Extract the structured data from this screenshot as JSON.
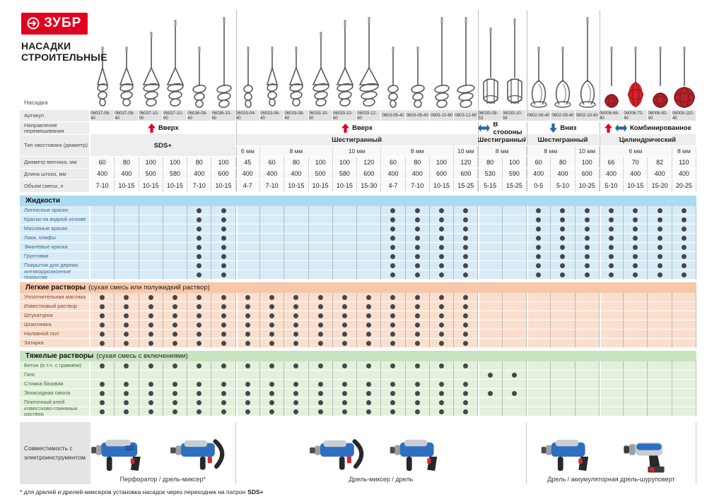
{
  "brand": {
    "logo_text": "ЗУБР",
    "title_line1": "НАСАДКИ",
    "title_line2": "СТРОИТЕЛЬНЫЕ"
  },
  "colors": {
    "logo_red": "#e2001f",
    "arrow_red": "#e2001f",
    "arrow_blue": "#2565ae",
    "liquids_band": "#aadcef",
    "liquids_row": "#d7ebf7",
    "light_band": "#f7c7a9",
    "light_row": "#fadfce",
    "heavy_band": "#c9e2c0",
    "heavy_row": "#e3f0dc",
    "dot": "#43474b",
    "paddle_red": "#b5242b"
  },
  "row_labels": {
    "nozzle": "Насадка",
    "article": "Артикул",
    "direction": "Направление перемешивания",
    "shank": "Тип хвостовика (диаметр)",
    "diameter": "Диаметр венчика, мм",
    "length": "Длина штока, мм",
    "volume": "Объем смеси, л"
  },
  "shaded_groups": [
    2,
    4
  ],
  "groups": [
    {
      "direction": "Вверх",
      "arrows": [
        "up"
      ],
      "shank": "SDS+",
      "merge_shank_rows": true,
      "cols": [
        {
          "article": "06037-06-40",
          "diameter": "60",
          "length": "400",
          "volume": "7-10",
          "paddle": "spiralA"
        },
        {
          "article": "06037-08-40",
          "diameter": "80",
          "length": "400",
          "volume": "10-15",
          "paddle": "spiralA"
        },
        {
          "article": "06037-10-50",
          "diameter": "100",
          "length": "500",
          "volume": "10-15",
          "paddle": "spiralA"
        },
        {
          "article": "06037-10-60",
          "diameter": "100",
          "length": "580",
          "volume": "10-15",
          "paddle": "spiralA"
        },
        {
          "article": "06036-08-40",
          "diameter": "80",
          "length": "400",
          "volume": "7-10",
          "paddle": "spiralB"
        },
        {
          "article": "06036-10-60",
          "diameter": "100",
          "length": "600",
          "volume": "10-15",
          "paddle": "spiralB"
        }
      ]
    },
    {
      "direction": "Вверх",
      "arrows": [
        "up"
      ],
      "shank": "Шестигранный",
      "mm": [
        {
          "label": "6 мм",
          "span": 1
        },
        {
          "label": "8 мм",
          "span": 3
        },
        {
          "label": "10 мм",
          "span": 2
        },
        {
          "label": "8 мм",
          "span": 3
        },
        {
          "label": "10 мм",
          "span": 1
        }
      ],
      "cols": [
        {
          "article": "06033-04-40",
          "diameter": "45",
          "length": "400",
          "volume": "4-7",
          "paddle": "spiralB"
        },
        {
          "article": "06033-06-40",
          "diameter": "60",
          "length": "400",
          "volume": "7-10",
          "paddle": "spiralA"
        },
        {
          "article": "06033-08-40",
          "diameter": "80",
          "length": "400",
          "volume": "10-15",
          "paddle": "spiralA"
        },
        {
          "article": "06033-10-50",
          "diameter": "100",
          "length": "500",
          "volume": "10-15",
          "paddle": "spiralA"
        },
        {
          "article": "06033-10-60",
          "diameter": "100",
          "length": "580",
          "volume": "10-15",
          "paddle": "spiralA"
        },
        {
          "article": "06033-12-60",
          "diameter": "120",
          "length": "600",
          "volume": "15-30",
          "paddle": "spiralA"
        },
        {
          "article": "0603-06-40",
          "diameter": "60",
          "length": "400",
          "volume": "4-7",
          "paddle": "spiralB"
        },
        {
          "article": "0603-08-40",
          "diameter": "80",
          "length": "400",
          "volume": "7-10",
          "paddle": "spiralB"
        },
        {
          "article": "0603-10-60",
          "diameter": "100",
          "length": "600",
          "volume": "10-15",
          "paddle": "spiralB"
        },
        {
          "article": "0603-12-60",
          "diameter": "120",
          "length": "600",
          "volume": "15-25",
          "paddle": "spiralB"
        }
      ]
    },
    {
      "direction": "В стороны",
      "arrows": [
        "lr"
      ],
      "shank": "Шестигранный",
      "mm": [
        {
          "label": "8 мм",
          "span": 2
        }
      ],
      "cols": [
        {
          "article": "06035-08-53",
          "diameter": "80",
          "length": "530",
          "volume": "5-15",
          "paddle": "cage"
        },
        {
          "article": "06035-10-59",
          "diameter": "100",
          "length": "590",
          "volume": "15-25",
          "paddle": "cage"
        }
      ]
    },
    {
      "direction": "Вниз",
      "arrows": [
        "down"
      ],
      "shank": "Шестигранный",
      "mm": [
        {
          "label": "8 мм",
          "span": 2
        },
        {
          "label": "10 мм",
          "span": 1
        }
      ],
      "cols": [
        {
          "article": "0602-06-40",
          "diameter": "60",
          "length": "400",
          "volume": "0-5",
          "paddle": "swirl"
        },
        {
          "article": "0602-08-40",
          "diameter": "80",
          "length": "400",
          "volume": "5-10",
          "paddle": "swirl"
        },
        {
          "article": "0602-10-60",
          "diameter": "100",
          "length": "600",
          "volume": "10-25",
          "paddle": "swirl"
        }
      ]
    },
    {
      "direction": "Комбинированное",
      "arrows": [
        "up",
        "lr"
      ],
      "shank": "Цилиндрический",
      "mm": [
        {
          "label": "6 мм",
          "span": 3
        },
        {
          "label": "8 мм",
          "span": 1
        }
      ],
      "cols": [
        {
          "article": "06006-66-40",
          "diameter": "66",
          "length": "400",
          "volume": "5-10",
          "paddle": "ball"
        },
        {
          "article": "06006-70-40",
          "diameter": "70",
          "length": "400",
          "volume": "10-15",
          "paddle": "ballV"
        },
        {
          "article": "06006-82-40",
          "diameter": "82",
          "length": "400",
          "volume": "15-20",
          "paddle": "ball"
        },
        {
          "article": "06008-110-40",
          "diameter": "110",
          "length": "400",
          "volume": "20-25",
          "paddle": "ball"
        }
      ]
    }
  ],
  "sections": [
    {
      "id": "liquids",
      "title": "Жидкости",
      "subtitle": "",
      "theme": "blue",
      "rows": [
        {
          "label": "Латексные краски",
          "dots": [
            5,
            6,
            13,
            14,
            15,
            16,
            19,
            20,
            21,
            22,
            23,
            24,
            25
          ]
        },
        {
          "label": "Краски на водной основе",
          "dots": [
            5,
            6,
            13,
            14,
            15,
            16,
            19,
            20,
            21,
            22,
            23,
            24,
            25
          ]
        },
        {
          "label": "Масляные краски",
          "dots": [
            5,
            6,
            13,
            14,
            15,
            16,
            19,
            20,
            21,
            22,
            23,
            24,
            25
          ]
        },
        {
          "label": "Лаки, олифы",
          "dots": [
            5,
            6,
            13,
            14,
            15,
            16,
            19,
            20,
            21,
            22,
            23,
            24,
            25
          ]
        },
        {
          "label": "Эмалевые краски",
          "dots": [
            5,
            6,
            13,
            14,
            15,
            16,
            19,
            20,
            21,
            22,
            23,
            24,
            25
          ]
        },
        {
          "label": "Грунтовки",
          "dots": [
            5,
            6,
            13,
            14,
            15,
            16,
            19,
            20,
            21,
            22,
            23,
            24,
            25
          ]
        },
        {
          "label": "Покрытия для дерева",
          "dots": [
            5,
            6,
            13,
            14,
            15,
            16,
            19,
            20,
            21,
            22,
            23,
            24,
            25
          ]
        },
        {
          "label": "Антикоррозионные покрытия",
          "dots": [
            5,
            6,
            13,
            14,
            15,
            16,
            19,
            20,
            21,
            22,
            23,
            24,
            25
          ]
        }
      ]
    },
    {
      "id": "light",
      "title": "Легкие растворы",
      "subtitle": "(сухая смесь или полужидкий раствор)",
      "theme": "peach",
      "rows": [
        {
          "label": "Уплотнительная мастика",
          "dots": [
            1,
            2,
            3,
            4,
            5,
            6,
            7,
            8,
            9,
            10,
            11,
            12,
            13,
            14,
            15,
            16
          ]
        },
        {
          "label": "Известковый раствор",
          "dots": [
            1,
            2,
            3,
            4,
            5,
            6,
            7,
            8,
            9,
            10,
            11,
            12,
            13,
            14,
            15,
            16
          ]
        },
        {
          "label": "Штукатурка",
          "dots": [
            1,
            2,
            3,
            4,
            5,
            6,
            7,
            8,
            9,
            10,
            11,
            12,
            13,
            14,
            15,
            16
          ]
        },
        {
          "label": "Шпатлевка",
          "dots": [
            1,
            2,
            3,
            4,
            5,
            6,
            7,
            8,
            9,
            10,
            11,
            12,
            13,
            14,
            15,
            16
          ]
        },
        {
          "label": "Наливной пол",
          "dots": [
            1,
            2,
            3,
            4,
            5,
            6,
            7,
            8,
            9,
            10,
            11,
            12,
            13,
            14,
            15,
            16
          ]
        },
        {
          "label": "Затирка",
          "dots": [
            1,
            2,
            3,
            4,
            5,
            6,
            7,
            8,
            9,
            10,
            11,
            12,
            13,
            14,
            15,
            16
          ]
        }
      ]
    },
    {
      "id": "heavy",
      "title": "Тяжелые растворы",
      "subtitle": "(сухая смесь с включениями)",
      "theme": "green",
      "rows": [
        {
          "label": "Бетон (в т.ч. с гравием)",
          "dots": [
            1,
            2,
            3,
            4,
            5,
            6,
            7,
            8,
            9,
            10,
            11,
            12,
            13,
            14,
            15,
            16
          ]
        },
        {
          "label": "Гипс",
          "dots": [
            17,
            18
          ]
        },
        {
          "label": "Стяжка базовая",
          "dots": [
            1,
            2,
            3,
            4,
            5,
            6,
            7,
            8,
            9,
            10,
            11,
            12,
            13,
            14,
            15,
            16
          ]
        },
        {
          "label": "Эпоксидная смола",
          "dots": [
            1,
            2,
            3,
            4,
            5,
            6,
            7,
            8,
            9,
            10,
            11,
            12,
            13,
            14,
            15,
            16,
            17,
            18
          ]
        },
        {
          "label": "Плиточный клей",
          "dots": [
            1,
            2,
            3,
            4,
            5,
            6,
            7,
            8,
            9,
            10,
            11,
            12,
            13,
            14,
            15,
            16
          ]
        },
        {
          "label": "Известково-глиняный раствор",
          "dots": [
            1,
            2,
            3,
            4,
            5,
            6,
            7,
            8,
            9,
            10,
            11,
            12,
            13,
            14,
            15,
            16
          ]
        }
      ]
    }
  ],
  "compatibility": {
    "label": "Совместимость с электроинструментом",
    "tools": [
      {
        "caption": "Перфоратор / дрель-миксер*",
        "types": [
          "hammer",
          "mixer"
        ]
      },
      {
        "caption": "Дрель-миксер / дрель",
        "types": [
          "mixer",
          "drill"
        ]
      },
      {
        "caption": "Дрель / аккумуляторная дрель-шуруповерт",
        "types": [
          "drill",
          "screwdriver"
        ]
      }
    ]
  },
  "footnote": {
    "prefix": "* для дрелей и дрелей-миксеров установка насадок через переходник на патрон ",
    "bold": "SDS+"
  }
}
